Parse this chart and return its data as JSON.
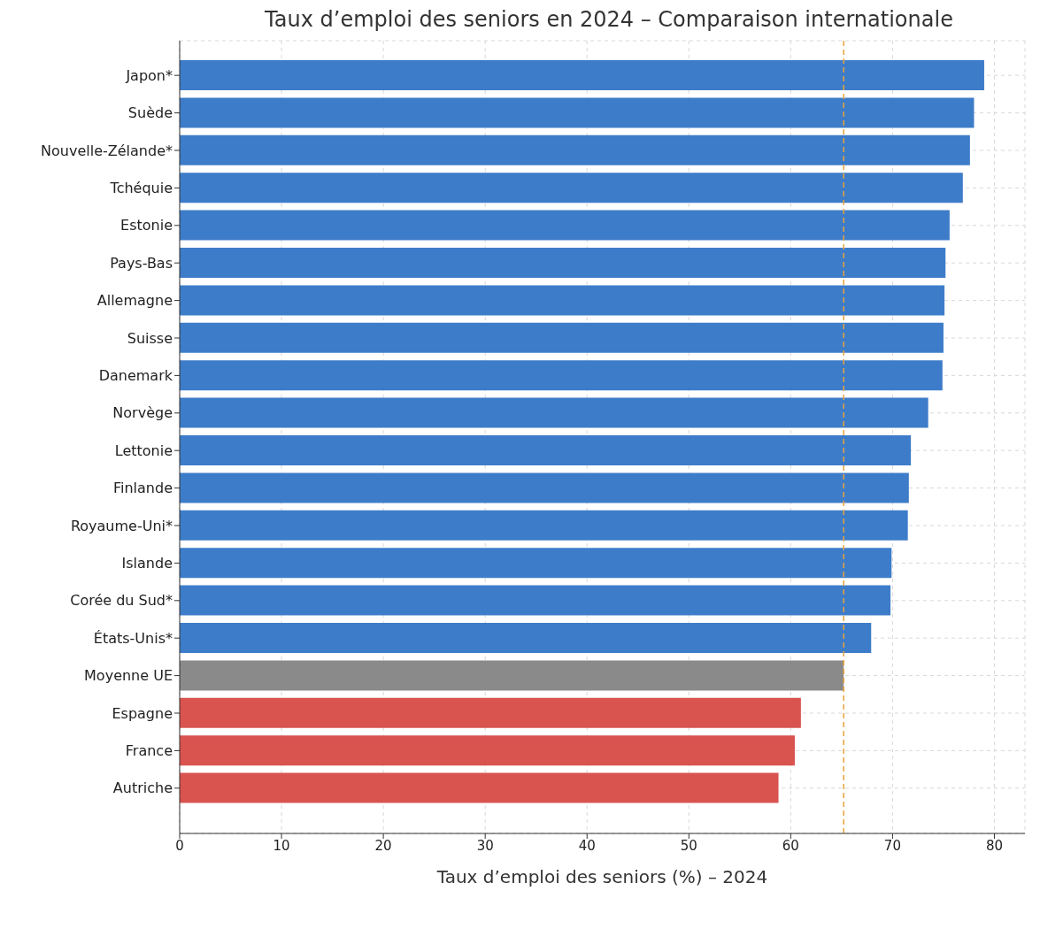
{
  "chart_data": {
    "type": "bar",
    "orientation": "horizontal",
    "title": "Taux d’emploi des seniors en 2024 – Comparaison internationale",
    "xlabel": "Taux d’emploi des seniors (%) – 2024",
    "categories": [
      "Japon*",
      "Suède",
      "Nouvelle-Zélande*",
      "Tchéquie",
      "Estonie",
      "Pays-Bas",
      "Allemagne",
      "Suisse",
      "Danemark",
      "Norvège",
      "Lettonie",
      "Finlande",
      "Royaume-Uni*",
      "Islande",
      "Corée du Sud*",
      "États-Unis*",
      "Moyenne UE",
      "Espagne",
      "France",
      "Autriche"
    ],
    "values": [
      79.0,
      78.0,
      77.6,
      76.9,
      75.6,
      75.2,
      75.1,
      75.0,
      74.9,
      73.5,
      71.8,
      71.6,
      71.5,
      69.9,
      69.8,
      67.9,
      65.2,
      61.0,
      60.4,
      58.8
    ],
    "colors": [
      "#3d7cc9",
      "#3d7cc9",
      "#3d7cc9",
      "#3d7cc9",
      "#3d7cc9",
      "#3d7cc9",
      "#3d7cc9",
      "#3d7cc9",
      "#3d7cc9",
      "#3d7cc9",
      "#3d7cc9",
      "#3d7cc9",
      "#3d7cc9",
      "#3d7cc9",
      "#3d7cc9",
      "#3d7cc9",
      "#8a8a8a",
      "#d9534f",
      "#d9534f",
      "#d9534f"
    ],
    "xlim": [
      0,
      83
    ],
    "xticks": [
      0,
      10,
      20,
      30,
      40,
      50,
      60,
      70,
      80
    ],
    "grid": true,
    "legend": false,
    "ref_lines": [
      {
        "axis": "x",
        "value": 65.2,
        "color": "#e8a33d",
        "line_style": "dashed"
      }
    ]
  }
}
